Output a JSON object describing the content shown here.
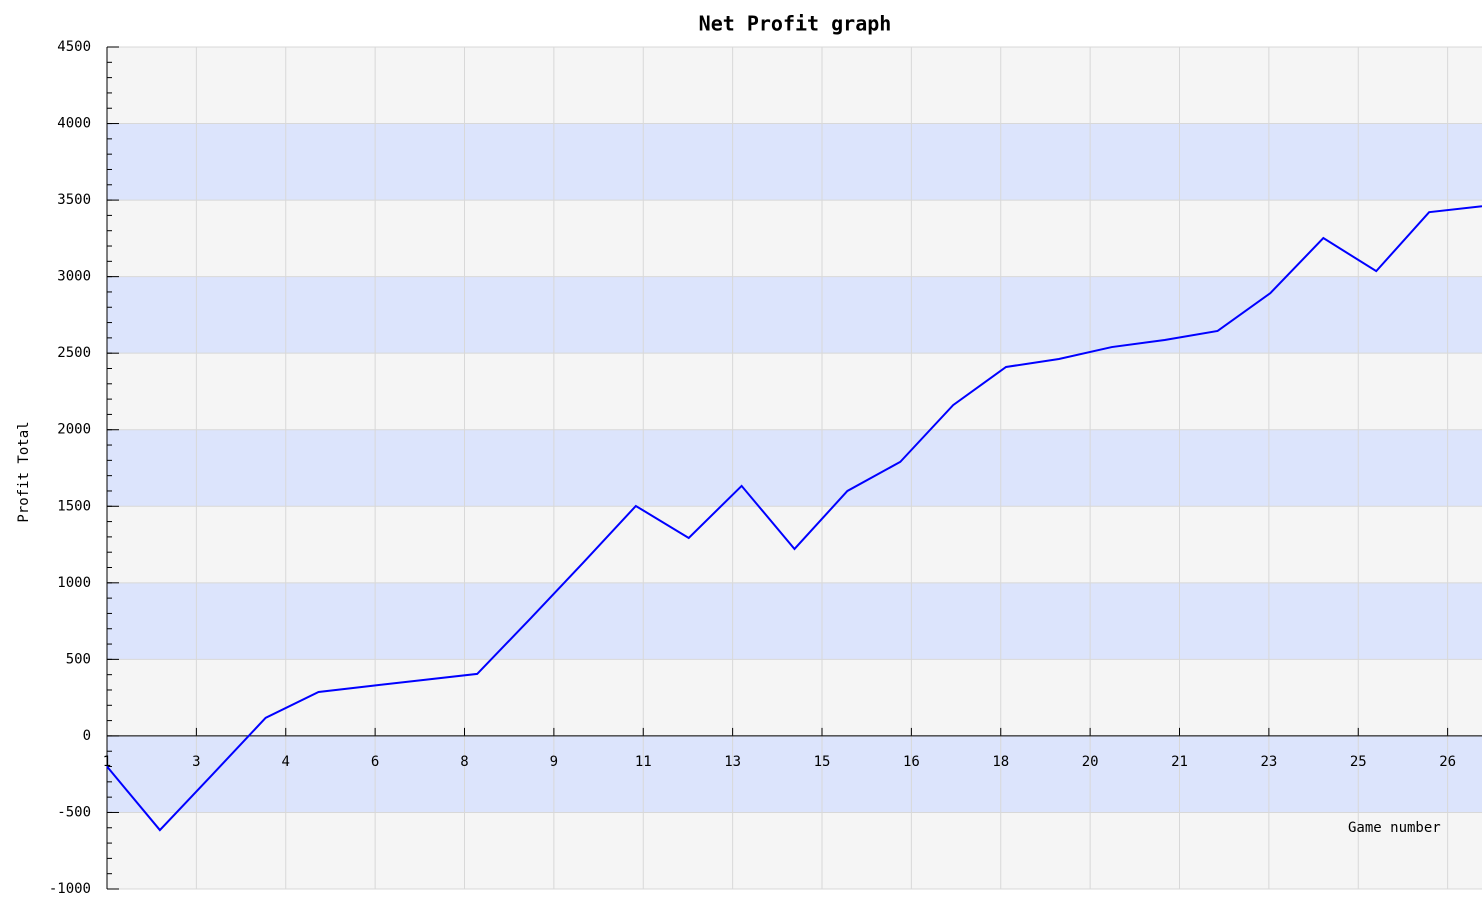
{
  "chart_data": {
    "type": "line",
    "title": "Net Profit graph",
    "x_label": "Game number",
    "y_label": "Profit Total",
    "x": [
      1,
      2,
      3,
      4,
      5,
      6,
      7,
      8,
      9,
      10,
      11,
      12,
      13,
      14,
      15,
      16,
      17,
      18,
      19,
      20,
      21,
      22,
      23,
      24,
      25,
      26,
      27
    ],
    "series": [
      {
        "name": "Net Profit",
        "color": "#0000ff",
        "values": [
          -200,
          -615,
          -250,
          118,
          287,
          327,
          366,
          405,
          764,
          1130,
          1502,
          1293,
          1633,
          1221,
          1600,
          1790,
          2161,
          2410,
          2462,
          2540,
          2586,
          2645,
          2893,
          3252,
          3036,
          3421,
          3460
        ]
      }
    ],
    "xlim": [
      1,
      27
    ],
    "xticks": [
      {
        "value": 1,
        "label": "1"
      },
      {
        "value": 2.69,
        "label": "3"
      },
      {
        "value": 4.38,
        "label": "4"
      },
      {
        "value": 6.07,
        "label": "6"
      },
      {
        "value": 7.76,
        "label": "8"
      },
      {
        "value": 9.45,
        "label": "9"
      },
      {
        "value": 11.14,
        "label": "11"
      },
      {
        "value": 12.83,
        "label": "13"
      },
      {
        "value": 14.52,
        "label": "15"
      },
      {
        "value": 16.21,
        "label": "16"
      },
      {
        "value": 17.9,
        "label": "18"
      },
      {
        "value": 19.59,
        "label": "20"
      },
      {
        "value": 21.28,
        "label": "21"
      },
      {
        "value": 22.97,
        "label": "23"
      },
      {
        "value": 24.66,
        "label": "25"
      },
      {
        "value": 26.35,
        "label": "26"
      }
    ],
    "ylim": [
      -1000,
      4500
    ],
    "yticks": [
      -1000,
      -500,
      0,
      500,
      1000,
      1500,
      2000,
      2500,
      3000,
      3500,
      4000,
      4500
    ],
    "grid": true
  }
}
